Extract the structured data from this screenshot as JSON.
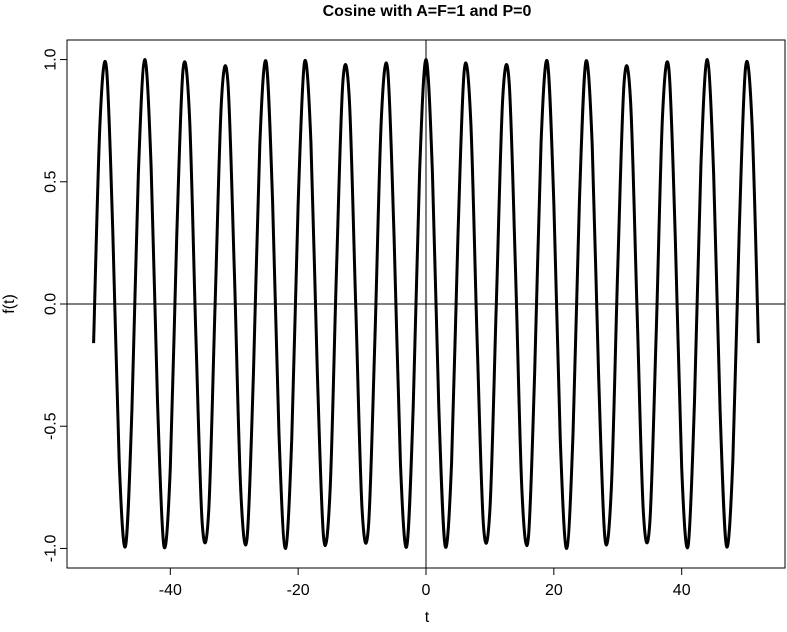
{
  "chart_data": {
    "type": "line",
    "title": "Cosine with A=F=1 and P=0",
    "x_label": "t",
    "y_label": "f(t)",
    "x": [
      -52,
      -51,
      -50,
      -49,
      -48,
      -47,
      -46,
      -45,
      -44,
      -43,
      -42,
      -41,
      -40,
      -39,
      -38,
      -37,
      -36,
      -35,
      -34,
      -33,
      -32,
      -31,
      -30,
      -29,
      -28,
      -27,
      -26,
      -25,
      -24,
      -23,
      -22,
      -21,
      -20,
      -19,
      -18,
      -17,
      -16,
      -15,
      -14,
      -13,
      -12,
      -11,
      -10,
      -9,
      -8,
      -7,
      -6,
      -5,
      -4,
      -3,
      -2,
      -1,
      0,
      1,
      2,
      3,
      4,
      5,
      6,
      7,
      8,
      9,
      10,
      11,
      12,
      13,
      14,
      15,
      16,
      17,
      18,
      19,
      20,
      21,
      22,
      23,
      24,
      25,
      26,
      27,
      28,
      29,
      30,
      31,
      32,
      33,
      34,
      35,
      36,
      37,
      38,
      39,
      40,
      41,
      42,
      43,
      44,
      45,
      46,
      47,
      48,
      49,
      50,
      51,
      52
    ],
    "series": [
      {
        "name": "f(t)",
        "color": "#000000",
        "values": [
          -0.16,
          0.74,
          0.97,
          0.3,
          -0.64,
          -0.99,
          -0.43,
          0.53,
          1,
          0.56,
          -0.4,
          -0.99,
          -0.67,
          0.27,
          0.96,
          0.77,
          -0.13,
          -0.9,
          -0.85,
          -0.01,
          0.83,
          0.91,
          0.15,
          -0.75,
          -0.96,
          -0.29,
          0.65,
          0.99,
          0.42,
          -0.53,
          -1,
          -0.55,
          0.41,
          0.99,
          0.66,
          -0.28,
          -0.96,
          -0.76,
          0.14,
          0.91,
          0.84,
          0,
          -0.84,
          -0.91,
          -0.15,
          0.75,
          0.96,
          0.28,
          -0.65,
          -0.99,
          -0.42,
          0.54,
          1,
          0.54,
          -0.42,
          -0.99,
          -0.65,
          0.28,
          0.96,
          0.75,
          -0.15,
          -0.91,
          -0.84,
          0,
          0.84,
          0.91,
          0.14,
          -0.76,
          -0.96,
          -0.28,
          0.66,
          0.99,
          0.41,
          -0.55,
          -1,
          -0.53,
          0.42,
          0.99,
          0.65,
          -0.29,
          -0.96,
          -0.75,
          0.15,
          0.91,
          0.83,
          -0.01,
          -0.85,
          -0.9,
          -0.13,
          0.77,
          0.96,
          0.27,
          -0.67,
          -0.99,
          -0.4,
          0.56,
          1,
          0.53,
          -0.43,
          -0.99,
          -0.64,
          0.3,
          0.97,
          0.74,
          -0.16
        ]
      }
    ],
    "xlim": [
      -56.16,
      56.16
    ],
    "ylim": [
      -1.08,
      1.08
    ],
    "xticks": [
      -40,
      -20,
      0,
      20,
      40
    ],
    "yticks": [
      {
        "value": -1,
        "label": "-1.0"
      },
      -0.5,
      {
        "value": 0,
        "label": "0.0"
      },
      0.5,
      {
        "value": 1,
        "label": "1.0"
      }
    ],
    "reference_lines": {
      "h": 0,
      "v": 0
    }
  }
}
